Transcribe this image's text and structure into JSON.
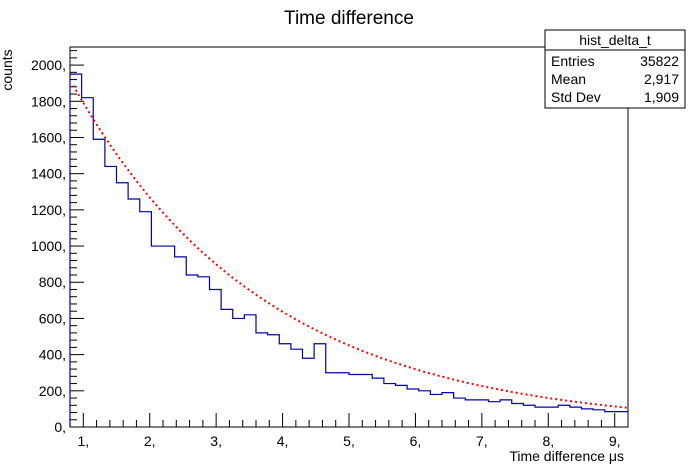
{
  "chart_data": {
    "type": "histogram",
    "title": "Time difference",
    "xlabel": "Time difference μs",
    "ylabel": "counts",
    "xlim": [
      0.8,
      9.2
    ],
    "ylim": [
      0,
      2100
    ],
    "xticks": [
      1,
      2,
      3,
      4,
      5,
      6,
      7,
      8,
      9
    ],
    "xtick_labels": [
      "1,",
      "2,",
      "3,",
      "4,",
      "5,",
      "6,",
      "7,",
      "8,",
      "9,"
    ],
    "yticks": [
      0,
      200,
      400,
      600,
      800,
      1000,
      1200,
      1400,
      1600,
      1800,
      2000
    ],
    "ytick_labels": [
      "0,",
      "200,",
      "400,",
      "600,",
      "800,",
      "1000,",
      "1200,",
      "1400,",
      "1600,",
      "1800,",
      "2000,"
    ],
    "hist_color": "#0000aa",
    "fit_color": "#ff0000",
    "bin_edges": [
      0.8,
      0.975,
      1.15,
      1.325,
      1.5,
      1.675,
      1.85,
      2.025,
      2.2,
      2.375,
      2.55,
      2.725,
      2.9,
      3.075,
      3.25,
      3.425,
      3.6,
      3.775,
      3.95,
      4.125,
      4.3,
      4.475,
      4.65,
      4.825,
      5.0,
      5.175,
      5.35,
      5.525,
      5.7,
      5.875,
      6.05,
      6.225,
      6.4,
      6.575,
      6.75,
      6.925,
      7.1,
      7.275,
      7.45,
      7.625,
      7.8,
      7.975,
      8.15,
      8.325,
      8.5,
      8.675,
      8.85,
      9.025,
      9.2
    ],
    "bin_values": [
      1950,
      1820,
      1590,
      1440,
      1350,
      1260,
      1190,
      1000,
      1000,
      940,
      840,
      830,
      760,
      650,
      600,
      620,
      520,
      510,
      460,
      430,
      380,
      460,
      300,
      300,
      290,
      290,
      270,
      240,
      230,
      210,
      200,
      180,
      190,
      160,
      150,
      150,
      140,
      150,
      130,
      120,
      110,
      110,
      120,
      110,
      100,
      95,
      85,
      85
    ],
    "fit": {
      "function": "exponential",
      "amplitude": 2530,
      "tau": 2.9,
      "color": "#ff0000",
      "style": "dotted"
    },
    "stats_box": {
      "title": "hist_delta_t",
      "rows": [
        {
          "label": "Entries",
          "value": "35822"
        },
        {
          "label": "Mean",
          "value": "2,917"
        },
        {
          "label": "Std Dev",
          "value": "1,909"
        }
      ]
    }
  }
}
